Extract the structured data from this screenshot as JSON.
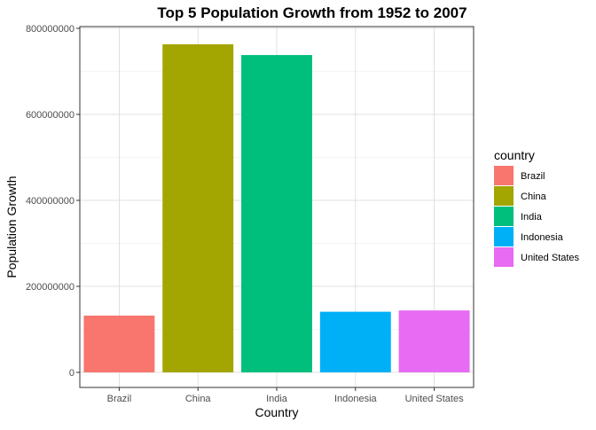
{
  "chart_data": {
    "type": "bar",
    "title": "Top 5 Population Growth from 1952 to 2007",
    "xlabel": "Country",
    "ylabel": "Population Growth",
    "categories": [
      "Brazil",
      "China",
      "India",
      "Indonesia",
      "United States"
    ],
    "values": [
      132000000,
      763000000,
      738000000,
      141000000,
      144000000
    ],
    "colors": [
      "#F8766D",
      "#A3A500",
      "#00BF7D",
      "#00B0F6",
      "#E76BF3"
    ],
    "ylim": [
      0,
      800000000
    ],
    "yticks": [
      0,
      200000000,
      400000000,
      600000000,
      800000000
    ],
    "ytick_labels": [
      "0",
      "200000000",
      "400000000",
      "600000000",
      "800000000"
    ],
    "grid": true,
    "legend": {
      "title": "country",
      "position": "right",
      "entries": [
        "Brazil",
        "China",
        "India",
        "Indonesia",
        "United States"
      ]
    }
  }
}
